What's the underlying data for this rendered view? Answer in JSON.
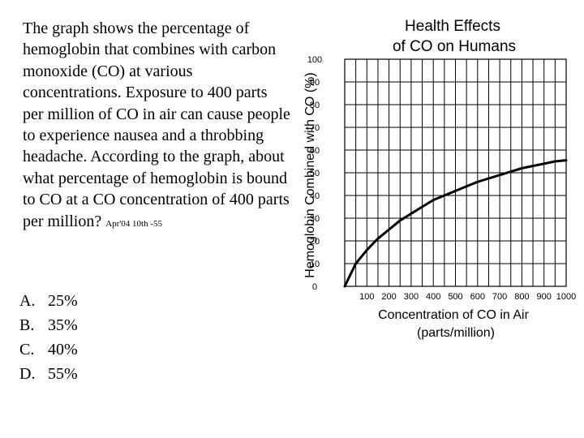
{
  "question": {
    "text": "The graph shows the percentage of hemoglobin that combines with carbon monoxide (CO) at various concentrations.  Exposure to 400 parts per million of CO in air can cause people to experience nausea and a throbbing headache. According to the graph, about what percentage of hemoglobin is bound to CO at a CO concentration of 400 parts per million?",
    "source_tag": "Apr'04 10th -55"
  },
  "choices": [
    {
      "letter": "A.",
      "text": "25%"
    },
    {
      "letter": "B.",
      "text": "35%"
    },
    {
      "letter": "C.",
      "text": "40%"
    },
    {
      "letter": "D.",
      "text": "55%"
    }
  ],
  "chart_data": {
    "type": "line",
    "title_line1": "Health Effects",
    "title_line2": "of CO on Humans",
    "xlabel_line1": "Concentration of CO in Air",
    "xlabel_line2": "(parts/million)",
    "ylabel": "Hemoglobin Combined with CO (%)",
    "xlim": [
      0,
      1000
    ],
    "ylim": [
      0,
      100
    ],
    "x_ticks": [
      100,
      200,
      300,
      400,
      500,
      600,
      700,
      800,
      900,
      1000
    ],
    "y_ticks": [
      0,
      10,
      20,
      30,
      40,
      50,
      60,
      70,
      80,
      90,
      100
    ],
    "grid": true,
    "series": [
      {
        "x": [
          0,
          50,
          100,
          150,
          200,
          250,
          300,
          350,
          400,
          450,
          500,
          550,
          600,
          650,
          700,
          750,
          800,
          850,
          900,
          950,
          1000
        ],
        "y": [
          0,
          10,
          16,
          21,
          25,
          29,
          32,
          35,
          38,
          40,
          42,
          44,
          46,
          47.5,
          49,
          50.5,
          52,
          53,
          54,
          55,
          55.5
        ],
        "color": "#000000"
      }
    ]
  }
}
